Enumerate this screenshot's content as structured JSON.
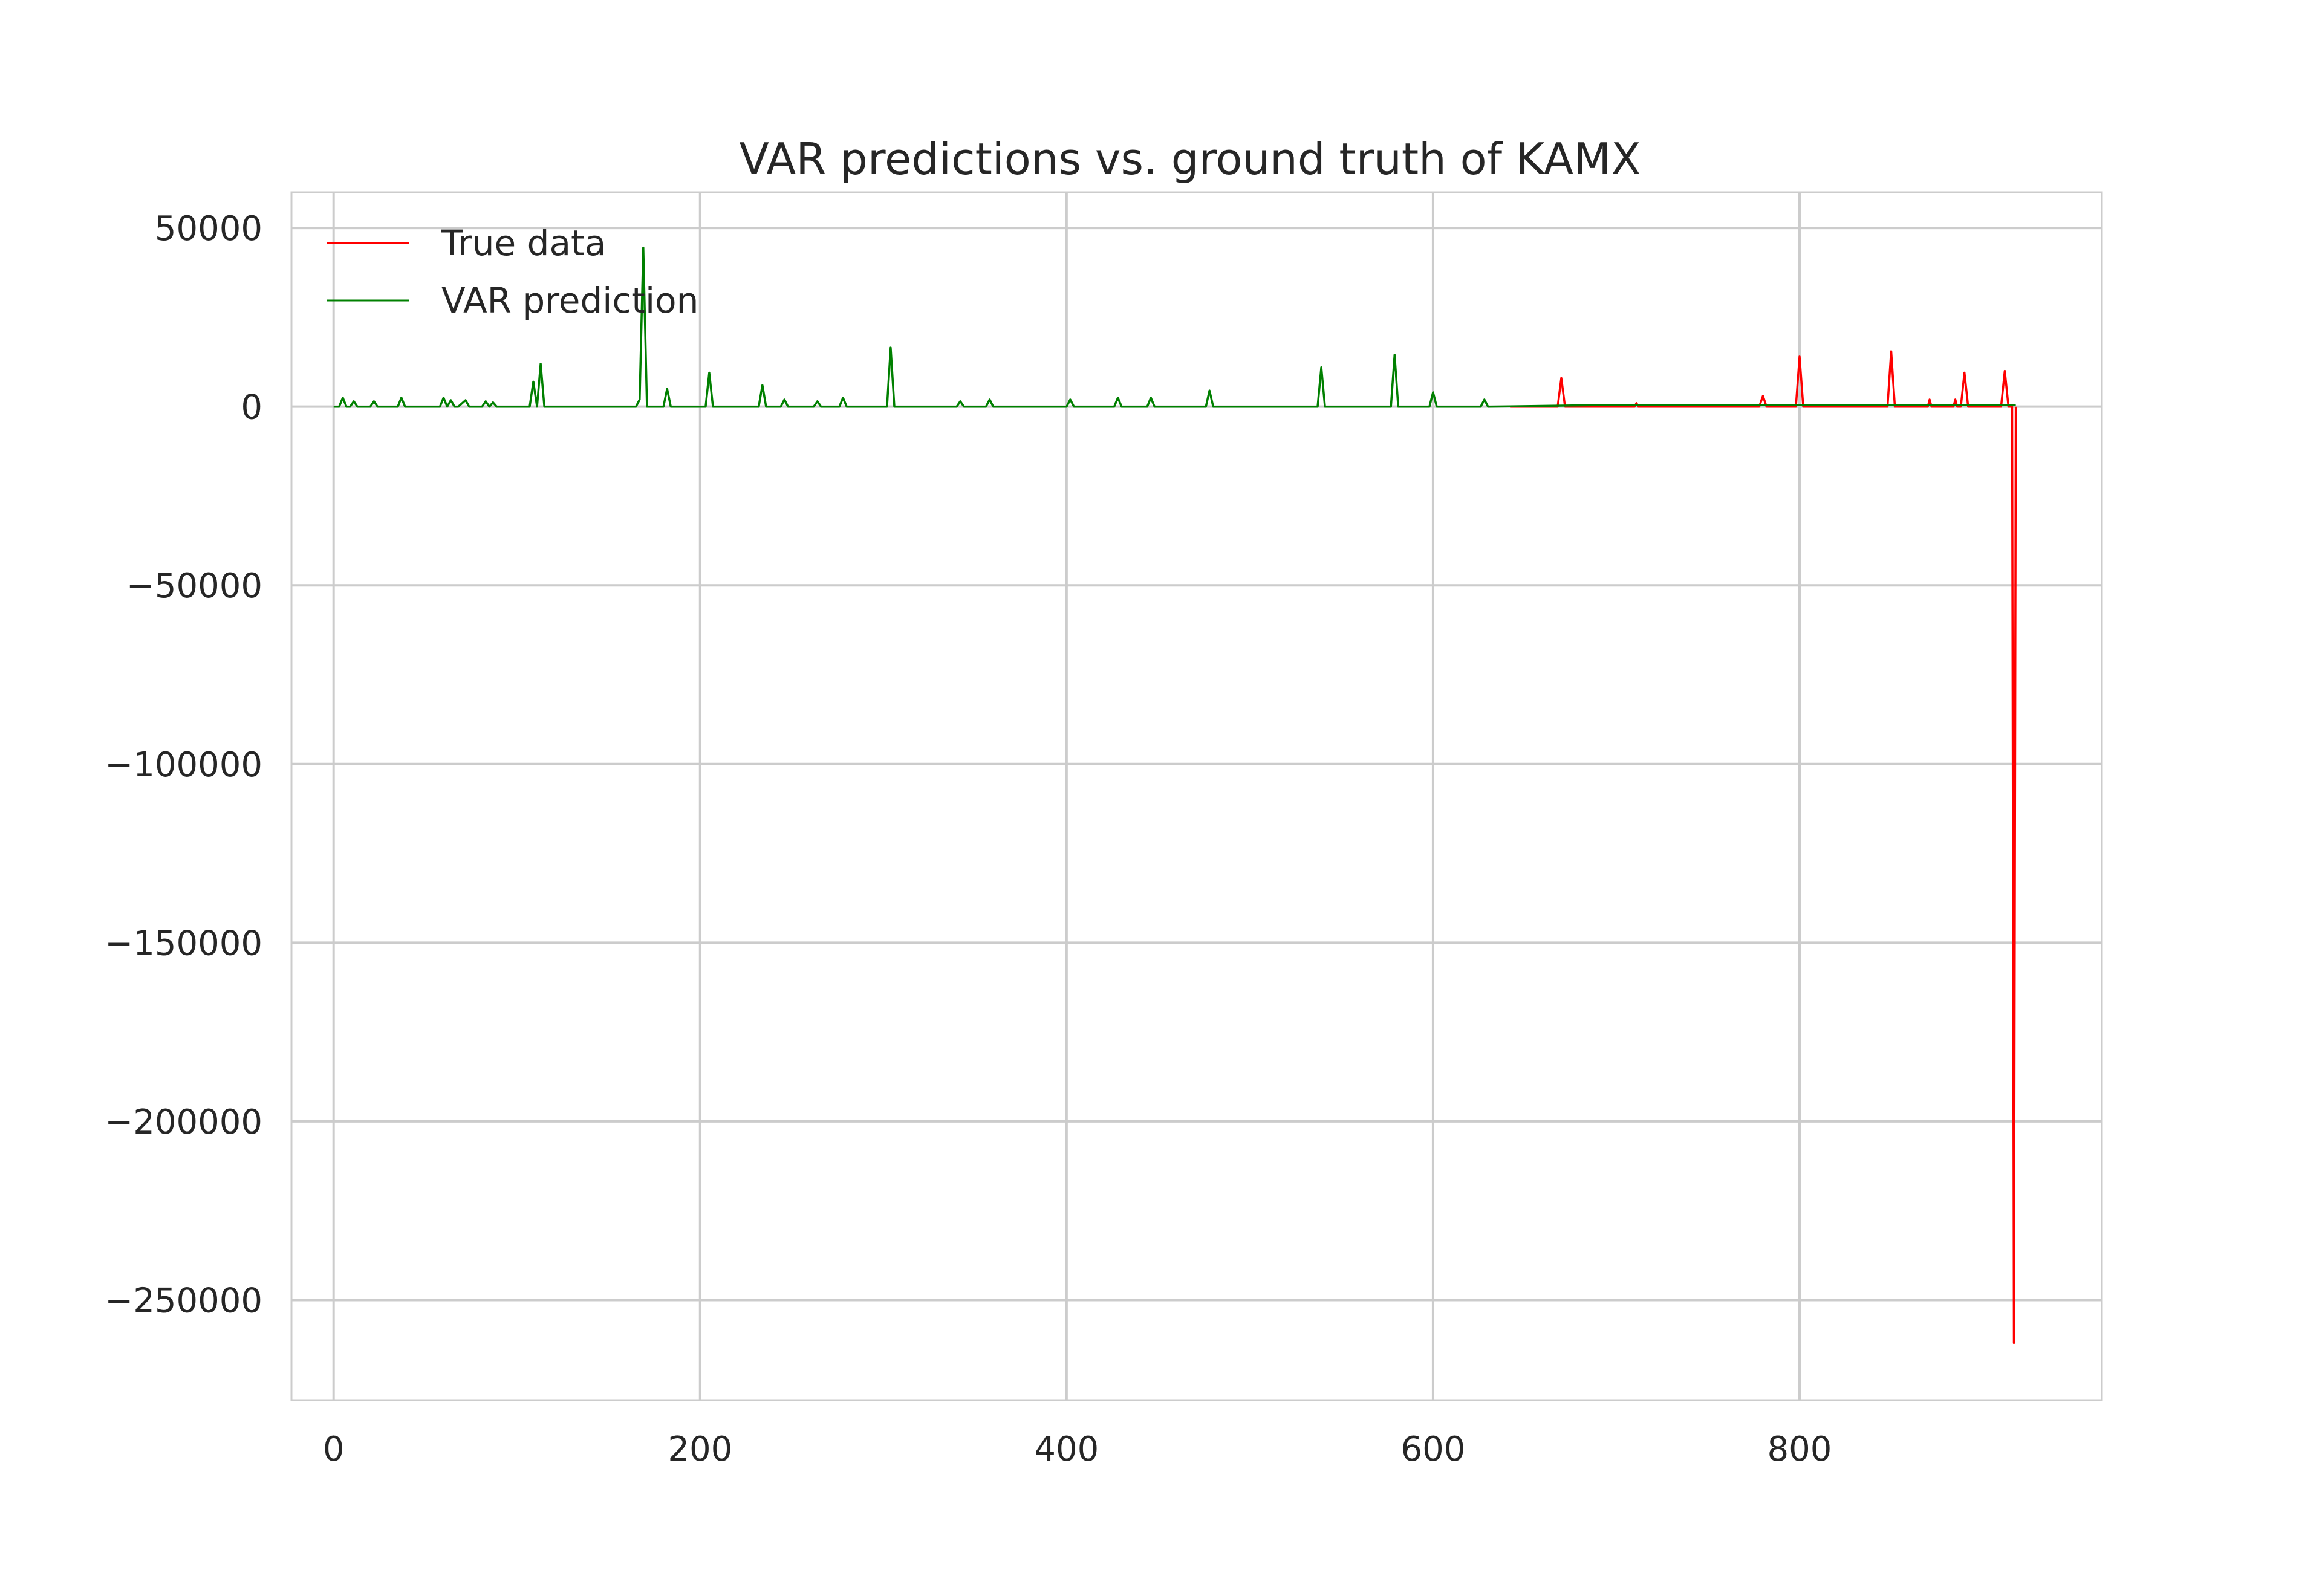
{
  "chart_data": {
    "type": "line",
    "title": "VAR predictions vs. ground truth of KAMX",
    "xlabel": "",
    "ylabel": "",
    "xlim": [
      -23,
      965
    ],
    "ylim": [
      -278000,
      60000
    ],
    "xticks": [
      0,
      200,
      400,
      600,
      800
    ],
    "xtick_labels": [
      "0",
      "200",
      "400",
      "600",
      "800"
    ],
    "yticks": [
      50000,
      0,
      -50000,
      -100000,
      -150000,
      -200000,
      -250000
    ],
    "ytick_labels": [
      "50000",
      "0",
      "−50000",
      "−100000",
      "−150000",
      "−200000",
      "−250000"
    ],
    "grid": true,
    "legend_position": "top-left",
    "series": [
      {
        "name": "True data",
        "color": "#ff0000",
        "x": [
          642,
          650,
          660,
          668,
          670,
          672,
          674,
          680,
          700,
          710,
          711,
          712,
          730,
          760,
          778,
          780,
          782,
          798,
          800,
          802,
          848,
          850,
          852,
          870,
          871,
          872,
          884,
          885,
          886,
          888,
          890,
          892,
          910,
          912,
          914,
          916,
          917,
          918
        ],
        "y": [
          0,
          0,
          0,
          0,
          8000,
          0,
          0,
          0,
          0,
          0,
          1000,
          0,
          0,
          0,
          0,
          3000,
          0,
          0,
          14000,
          0,
          0,
          15500,
          0,
          0,
          2000,
          0,
          0,
          2000,
          0,
          0,
          9500,
          0,
          0,
          10000,
          0,
          0,
          -262000,
          0
        ]
      },
      {
        "name": "VAR prediction",
        "color": "#008000",
        "x": [
          0,
          3,
          5,
          7,
          9,
          11,
          13,
          20,
          22,
          24,
          35,
          37,
          39,
          58,
          60,
          62,
          64,
          66,
          68,
          72,
          74,
          76,
          81,
          83,
          85,
          87,
          89,
          107,
          109,
          111,
          113,
          115,
          165,
          167,
          169,
          171,
          173,
          180,
          182,
          184,
          203,
          205,
          207,
          232,
          234,
          236,
          244,
          246,
          248,
          262,
          264,
          266,
          276,
          278,
          280,
          302,
          304,
          306,
          340,
          342,
          344,
          356,
          358,
          360,
          400,
          402,
          404,
          426,
          428,
          430,
          444,
          446,
          448,
          476,
          478,
          480,
          537,
          539,
          541,
          577,
          579,
          581,
          598,
          600,
          602,
          626,
          628,
          630,
          700,
          780,
          800,
          850,
          918
        ],
        "y": [
          0,
          0,
          2500,
          0,
          0,
          1500,
          0,
          0,
          1500,
          0,
          0,
          2500,
          0,
          0,
          2500,
          0,
          1800,
          0,
          0,
          1800,
          0,
          0,
          0,
          1500,
          0,
          1200,
          0,
          0,
          7000,
          0,
          12000,
          0,
          0,
          2000,
          44500,
          0,
          0,
          0,
          5000,
          0,
          0,
          9500,
          0,
          0,
          6000,
          0,
          0,
          2000,
          0,
          0,
          1500,
          0,
          0,
          2500,
          0,
          0,
          16500,
          0,
          0,
          1500,
          0,
          0,
          2000,
          0,
          0,
          2000,
          0,
          0,
          2500,
          0,
          0,
          2500,
          0,
          0,
          4500,
          0,
          0,
          11000,
          0,
          0,
          14500,
          0,
          0,
          4000,
          0,
          0,
          2000,
          0,
          500,
          500,
          500,
          500,
          500
        ]
      }
    ]
  }
}
